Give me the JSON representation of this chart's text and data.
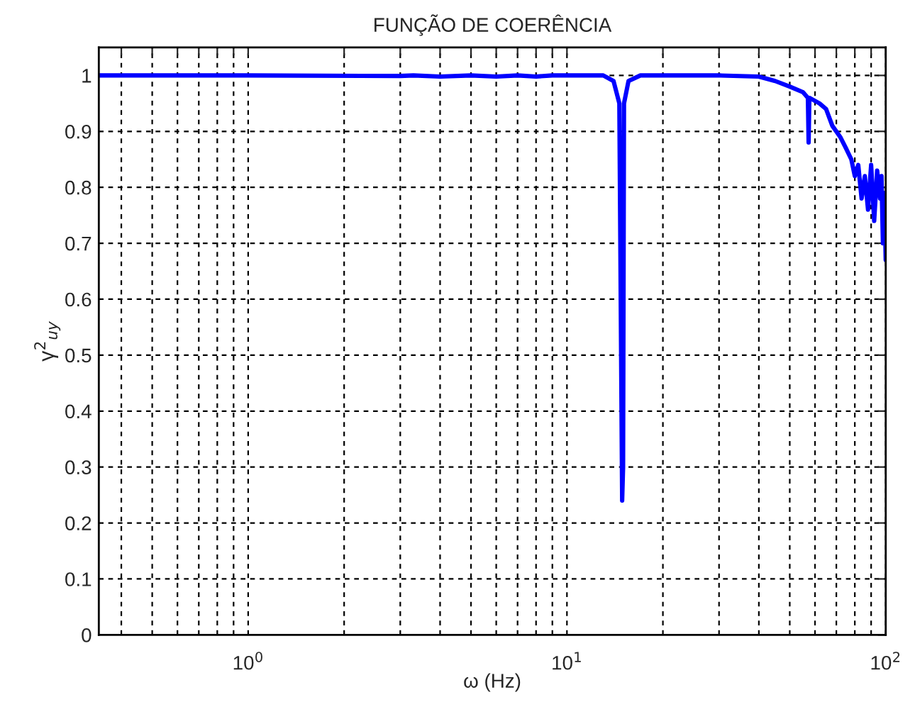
{
  "chart_data": {
    "type": "line",
    "title": "FUNÇÃO DE COERÊNCIA",
    "xlabel": "ω (Hz)",
    "ylabel": "γ$^{2}$$_{uy}$",
    "log": "x",
    "grid": true,
    "xlim": [
      0.34,
      100
    ],
    "ylim": [
      0,
      1.05
    ],
    "xticks": [
      {
        "value": 0.4,
        "label": null
      },
      {
        "value": 0.5,
        "label": null
      },
      {
        "value": 0.6,
        "label": null
      },
      {
        "value": 0.7,
        "label": null
      },
      {
        "value": 0.8,
        "label": null
      },
      {
        "value": 0.9,
        "label": null
      },
      {
        "value": 1,
        "label": "10$^{0}$"
      },
      {
        "value": 2,
        "label": null
      },
      {
        "value": 3,
        "label": null
      },
      {
        "value": 4,
        "label": null
      },
      {
        "value": 5,
        "label": null
      },
      {
        "value": 6,
        "label": null
      },
      {
        "value": 7,
        "label": null
      },
      {
        "value": 8,
        "label": null
      },
      {
        "value": 9,
        "label": null
      },
      {
        "value": 10,
        "label": "10$^{1}$"
      },
      {
        "value": 20,
        "label": null
      },
      {
        "value": 30,
        "label": null
      },
      {
        "value": 40,
        "label": null
      },
      {
        "value": 50,
        "label": null
      },
      {
        "value": 60,
        "label": null
      },
      {
        "value": 70,
        "label": null
      },
      {
        "value": 80,
        "label": null
      },
      {
        "value": 90,
        "label": null
      },
      {
        "value": 100,
        "label": "10$^{2}$"
      }
    ],
    "yticks": [
      0,
      0.1,
      0.2,
      0.3,
      0.4,
      0.5,
      0.6,
      0.7,
      0.8,
      0.9,
      1
    ],
    "series": [
      {
        "color": "#0000ff",
        "x": [
          0.34,
          1,
          3,
          3.3,
          4,
          5,
          6,
          7,
          8,
          9,
          13,
          14,
          14.6,
          14.9,
          15.0,
          15.1,
          15.6,
          17,
          30,
          40,
          45,
          50,
          55,
          57,
          57.3,
          57.6,
          62,
          65,
          68,
          72,
          75,
          78,
          80,
          82,
          84,
          86,
          88,
          90,
          92,
          94,
          96,
          97,
          98,
          99,
          100
        ],
        "values": [
          1.0,
          1.0,
          0.999,
          1.0,
          0.998,
          1.0,
          0.998,
          1.0,
          0.998,
          1.0,
          1.0,
          0.99,
          0.95,
          0.24,
          0.3,
          0.95,
          0.99,
          1.0,
          1.0,
          0.998,
          0.99,
          0.98,
          0.97,
          0.96,
          0.88,
          0.96,
          0.95,
          0.94,
          0.91,
          0.89,
          0.87,
          0.85,
          0.82,
          0.84,
          0.78,
          0.82,
          0.76,
          0.84,
          0.74,
          0.83,
          0.78,
          0.82,
          0.7,
          0.79,
          0.67
        ]
      }
    ]
  }
}
